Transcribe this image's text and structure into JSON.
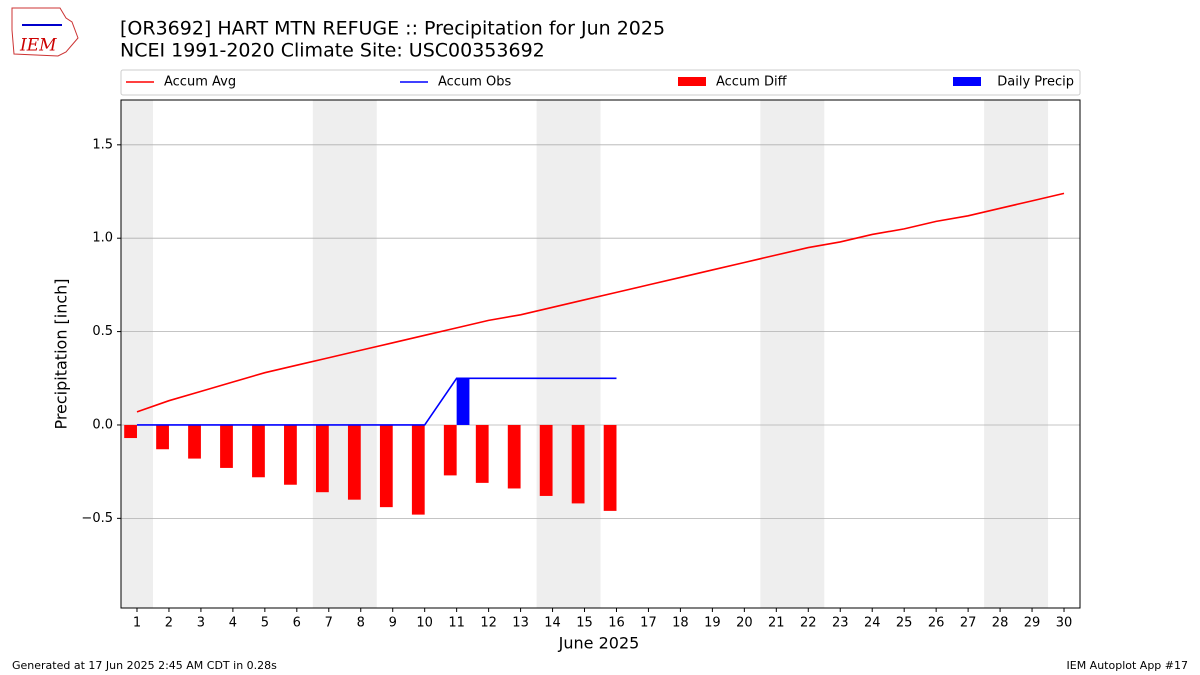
{
  "chart_data": {
    "type": "combo",
    "title": "[OR3692] HART MTN REFUGE :: Precipitation for Jun 2025",
    "subtitle": "NCEI 1991-2020 Climate Site: USC00353692",
    "logo_text": "IEM",
    "x_label": "June 2025",
    "y_label": "Precipitation [inch]",
    "footer_left": "Generated at 17 Jun 2025 2:45 AM CDT in 0.28s",
    "footer_right": "IEM Autoplot App #17",
    "x": [
      1,
      2,
      3,
      4,
      5,
      6,
      7,
      8,
      9,
      10,
      11,
      12,
      13,
      14,
      15,
      16,
      17,
      18,
      19,
      20,
      21,
      22,
      23,
      24,
      25,
      26,
      27,
      28,
      29,
      30
    ],
    "xlim": [
      0.5,
      30.5
    ],
    "xticks": [
      1,
      2,
      3,
      4,
      5,
      6,
      7,
      8,
      9,
      10,
      11,
      12,
      13,
      14,
      15,
      16,
      17,
      18,
      19,
      20,
      21,
      22,
      23,
      24,
      25,
      26,
      27,
      28,
      29,
      30
    ],
    "ylim": [
      -0.98,
      1.74
    ],
    "yticks": [
      {
        "value": -0.5,
        "label": "−0.5"
      },
      {
        "value": 0,
        "label": "0.0"
      },
      0.5,
      {
        "value": 1,
        "label": "1.0"
      },
      1.5
    ],
    "grid": true,
    "shaded_spans": [
      [
        0.5,
        1.5
      ],
      [
        6.5,
        8.5
      ],
      [
        13.5,
        15.5
      ],
      [
        20.5,
        22.5
      ],
      [
        27.5,
        29.5
      ]
    ],
    "shade_color": "#eeeeee",
    "legend": "top",
    "series": [
      {
        "name": "Accum Avg",
        "type": "line",
        "color": "#ff0000",
        "values": [
          0.07,
          0.13,
          0.18,
          0.23,
          0.28,
          0.32,
          0.36,
          0.4,
          0.44,
          0.48,
          0.52,
          0.56,
          0.59,
          0.63,
          0.67,
          0.71,
          0.75,
          0.79,
          0.83,
          0.87,
          0.91,
          0.95,
          0.98,
          1.02,
          1.05,
          1.09,
          1.12,
          1.16,
          1.2,
          1.24
        ]
      },
      {
        "name": "Accum Obs",
        "type": "line",
        "color": "#0000ff",
        "values": [
          0,
          0,
          0,
          0,
          0,
          0,
          0,
          0,
          0,
          0,
          0.25,
          0.25,
          0.25,
          0.25,
          0.25,
          0.25,
          null,
          null,
          null,
          null,
          null,
          null,
          null,
          null,
          null,
          null,
          null,
          null,
          null,
          null
        ]
      },
      {
        "name": "Accum Diff",
        "type": "bar",
        "color": "#ff0000",
        "values": [
          -0.07,
          -0.13,
          -0.18,
          -0.23,
          -0.28,
          -0.32,
          -0.36,
          -0.4,
          -0.44,
          -0.48,
          -0.27,
          -0.31,
          -0.34,
          -0.38,
          -0.42,
          -0.46,
          null,
          null,
          null,
          null,
          null,
          null,
          null,
          null,
          null,
          null,
          null,
          null,
          null,
          null
        ]
      },
      {
        "name": "Daily Precip",
        "type": "bar",
        "color": "#0000ff",
        "values": [
          0,
          0,
          0,
          0,
          0,
          0,
          0,
          0,
          0,
          0,
          0.25,
          0,
          0,
          0,
          0,
          0,
          null,
          null,
          null,
          null,
          null,
          null,
          null,
          null,
          null,
          null,
          null,
          null,
          null,
          null
        ]
      }
    ]
  }
}
